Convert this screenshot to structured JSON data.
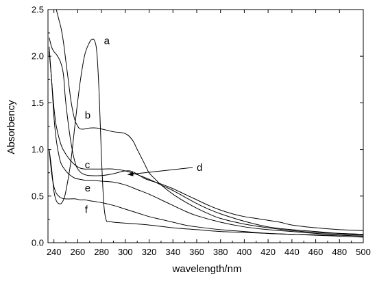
{
  "chart_data": {
    "type": "line",
    "title": "",
    "xlabel": "wavelength/nm",
    "ylabel": "Absorbency",
    "xlim": [
      235,
      500
    ],
    "ylim": [
      0.0,
      2.5
    ],
    "xticks": [
      240,
      260,
      280,
      300,
      320,
      340,
      360,
      380,
      400,
      420,
      440,
      460,
      480,
      500
    ],
    "yticks": [
      0.0,
      0.5,
      1.0,
      1.5,
      2.0,
      2.5
    ],
    "xtick_labels": [
      "240",
      "260",
      "280",
      "300",
      "320",
      "340",
      "360",
      "380",
      "400",
      "420",
      "440",
      "460",
      "480",
      "500"
    ],
    "ytick_labels": [
      "0.0",
      "0.5",
      "1.0",
      "1.5",
      "2.0",
      "2.5"
    ],
    "grid": false,
    "series": [
      {
        "name": "a",
        "x": [
          236,
          238,
          240,
          242,
          244,
          246,
          248,
          250,
          254,
          258,
          262,
          266,
          270,
          272,
          274,
          276,
          278,
          280,
          282,
          284,
          286,
          290,
          300,
          320,
          340,
          360,
          380,
          400,
          440,
          480,
          500
        ],
        "y": [
          1.0,
          0.8,
          0.55,
          0.45,
          0.42,
          0.42,
          0.46,
          0.55,
          0.85,
          1.3,
          1.72,
          2.02,
          2.15,
          2.18,
          2.17,
          2.05,
          1.6,
          0.9,
          0.4,
          0.24,
          0.23,
          0.22,
          0.21,
          0.19,
          0.16,
          0.14,
          0.12,
          0.11,
          0.09,
          0.08,
          0.07
        ]
      },
      {
        "name": "b",
        "x": [
          242,
          244,
          246,
          248,
          250,
          252,
          254,
          256,
          258,
          260,
          262,
          266,
          270,
          276,
          280,
          290,
          300,
          306,
          310,
          316,
          320,
          326,
          330,
          340,
          350,
          360,
          370,
          380,
          400,
          420,
          440,
          460,
          480,
          500
        ],
        "y": [
          2.5,
          2.4,
          2.3,
          2.15,
          1.95,
          1.75,
          1.55,
          1.4,
          1.3,
          1.25,
          1.22,
          1.22,
          1.23,
          1.23,
          1.22,
          1.19,
          1.17,
          1.1,
          1.0,
          0.85,
          0.75,
          0.67,
          0.62,
          0.52,
          0.44,
          0.37,
          0.31,
          0.26,
          0.2,
          0.16,
          0.13,
          0.11,
          0.1,
          0.09
        ]
      },
      {
        "name": "c",
        "x": [
          236,
          238,
          240,
          242,
          246,
          250,
          254,
          258,
          262,
          266,
          270,
          280,
          290,
          300,
          310,
          320,
          330,
          340,
          350,
          360,
          370,
          380,
          400,
          420,
          440,
          460,
          480,
          500
        ],
        "y": [
          2.1,
          1.75,
          1.45,
          1.25,
          1.05,
          0.95,
          0.88,
          0.83,
          0.8,
          0.79,
          0.79,
          0.79,
          0.79,
          0.77,
          0.73,
          0.68,
          0.62,
          0.56,
          0.49,
          0.42,
          0.36,
          0.31,
          0.23,
          0.17,
          0.14,
          0.12,
          0.1,
          0.09
        ]
      },
      {
        "name": "d",
        "x": [
          236,
          238,
          240,
          242,
          244,
          246,
          248,
          250,
          254,
          258,
          262,
          266,
          270,
          280,
          290,
          296,
          300,
          304,
          308,
          312,
          316,
          320,
          330,
          340,
          350,
          360,
          370,
          380,
          390,
          400,
          410,
          420,
          430,
          440,
          460,
          480,
          500
        ],
        "y": [
          2.2,
          2.1,
          2.05,
          2.02,
          1.98,
          1.92,
          1.8,
          1.5,
          1.1,
          0.85,
          0.76,
          0.73,
          0.72,
          0.72,
          0.74,
          0.76,
          0.77,
          0.77,
          0.75,
          0.72,
          0.69,
          0.67,
          0.63,
          0.58,
          0.52,
          0.46,
          0.4,
          0.35,
          0.31,
          0.28,
          0.26,
          0.24,
          0.22,
          0.19,
          0.16,
          0.14,
          0.13
        ]
      },
      {
        "name": "e",
        "x": [
          236,
          238,
          240,
          242,
          244,
          246,
          250,
          254,
          258,
          262,
          266,
          270,
          280,
          290,
          300,
          310,
          320,
          330,
          340,
          350,
          360,
          380,
          400,
          420,
          440,
          460,
          480,
          500
        ],
        "y": [
          2.05,
          1.75,
          1.35,
          1.1,
          0.95,
          0.85,
          0.77,
          0.72,
          0.69,
          0.68,
          0.67,
          0.67,
          0.66,
          0.65,
          0.62,
          0.57,
          0.52,
          0.46,
          0.4,
          0.34,
          0.29,
          0.22,
          0.17,
          0.14,
          0.12,
          0.1,
          0.09,
          0.08
        ]
      },
      {
        "name": "f",
        "x": [
          236,
          238,
          240,
          242,
          244,
          246,
          250,
          254,
          258,
          262,
          266,
          270,
          280,
          290,
          300,
          310,
          320,
          330,
          340,
          350,
          360,
          380,
          400,
          420,
          440,
          460,
          480,
          500
        ],
        "y": [
          1.0,
          0.75,
          0.6,
          0.53,
          0.5,
          0.48,
          0.47,
          0.47,
          0.47,
          0.46,
          0.46,
          0.45,
          0.43,
          0.4,
          0.36,
          0.32,
          0.28,
          0.25,
          0.22,
          0.19,
          0.17,
          0.14,
          0.12,
          0.1,
          0.09,
          0.08,
          0.07,
          0.06
        ]
      }
    ],
    "annotations": [
      {
        "text": "a",
        "series": "a",
        "x": 282,
        "y": 2.13
      },
      {
        "text": "b",
        "series": "b",
        "x": 266,
        "y": 1.33
      },
      {
        "text": "c",
        "series": "c",
        "x": 266,
        "y": 0.8
      },
      {
        "text": "d",
        "series": "d",
        "x": 360,
        "y": 0.77,
        "arrow_to": {
          "x": 302,
          "y": 0.73
        }
      },
      {
        "text": "e",
        "series": "e",
        "x": 266,
        "y": 0.55
      },
      {
        "text": "f",
        "series": "f",
        "x": 266,
        "y": 0.32
      }
    ]
  }
}
